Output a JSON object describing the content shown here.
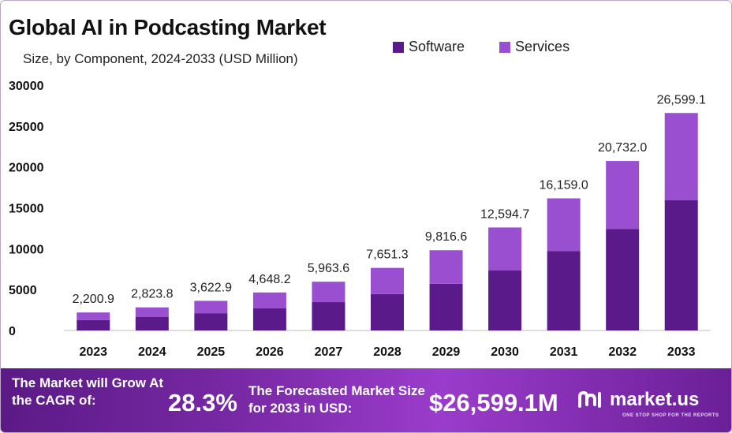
{
  "title": "Global AI in Podcasting Market",
  "subtitle": "Size, by Component, 2024-2033 (USD Million)",
  "colors": {
    "software": "#5a1a8a",
    "services": "#9a4fd0",
    "footer_start": "#5b1a86",
    "footer_end": "#9b3ccc"
  },
  "chart_data": {
    "type": "bar",
    "stacked": true,
    "categories": [
      "2023",
      "2024",
      "2025",
      "2026",
      "2027",
      "2028",
      "2029",
      "2030",
      "2031",
      "2032",
      "2033"
    ],
    "series": [
      {
        "name": "Software",
        "values": [
          1280,
          1640,
          2110,
          2710,
          3470,
          4450,
          5710,
          7330,
          9700,
          12400,
          15950
        ]
      },
      {
        "name": "Services",
        "values": [
          920.9,
          1183.8,
          1512.9,
          1938.2,
          2493.6,
          3201.3,
          4106.6,
          5264.7,
          6459.0,
          8332.0,
          10649.1
        ]
      }
    ],
    "totals_labels": [
      "2,200.9",
      "2,823.8",
      "3,622.9",
      "4,648.2",
      "5,963.6",
      "7,651.3",
      "9,816.6",
      "12,594.7",
      "16,159.0",
      "20,732.0",
      "26,599.1"
    ],
    "totals": [
      2200.9,
      2823.8,
      3622.9,
      4648.2,
      5963.6,
      7651.3,
      9816.6,
      12594.7,
      16159.0,
      20732.0,
      26599.1
    ],
    "yticks": [
      "0",
      "5000",
      "10000",
      "15000",
      "20000",
      "25000",
      "30000"
    ],
    "ylim": [
      0,
      30000
    ],
    "grid": false,
    "legend_position": "top-right"
  },
  "footer": {
    "cagr_label": "The Market will Grow At the CAGR of:",
    "cagr_value": "28.3%",
    "forecast_label": "The Forecasted Market Size for 2033 in USD:",
    "forecast_value": "$26,599.1M",
    "brand": "market.us",
    "brand_tagline": "ONE STOP SHOP FOR THE REPORTS"
  }
}
